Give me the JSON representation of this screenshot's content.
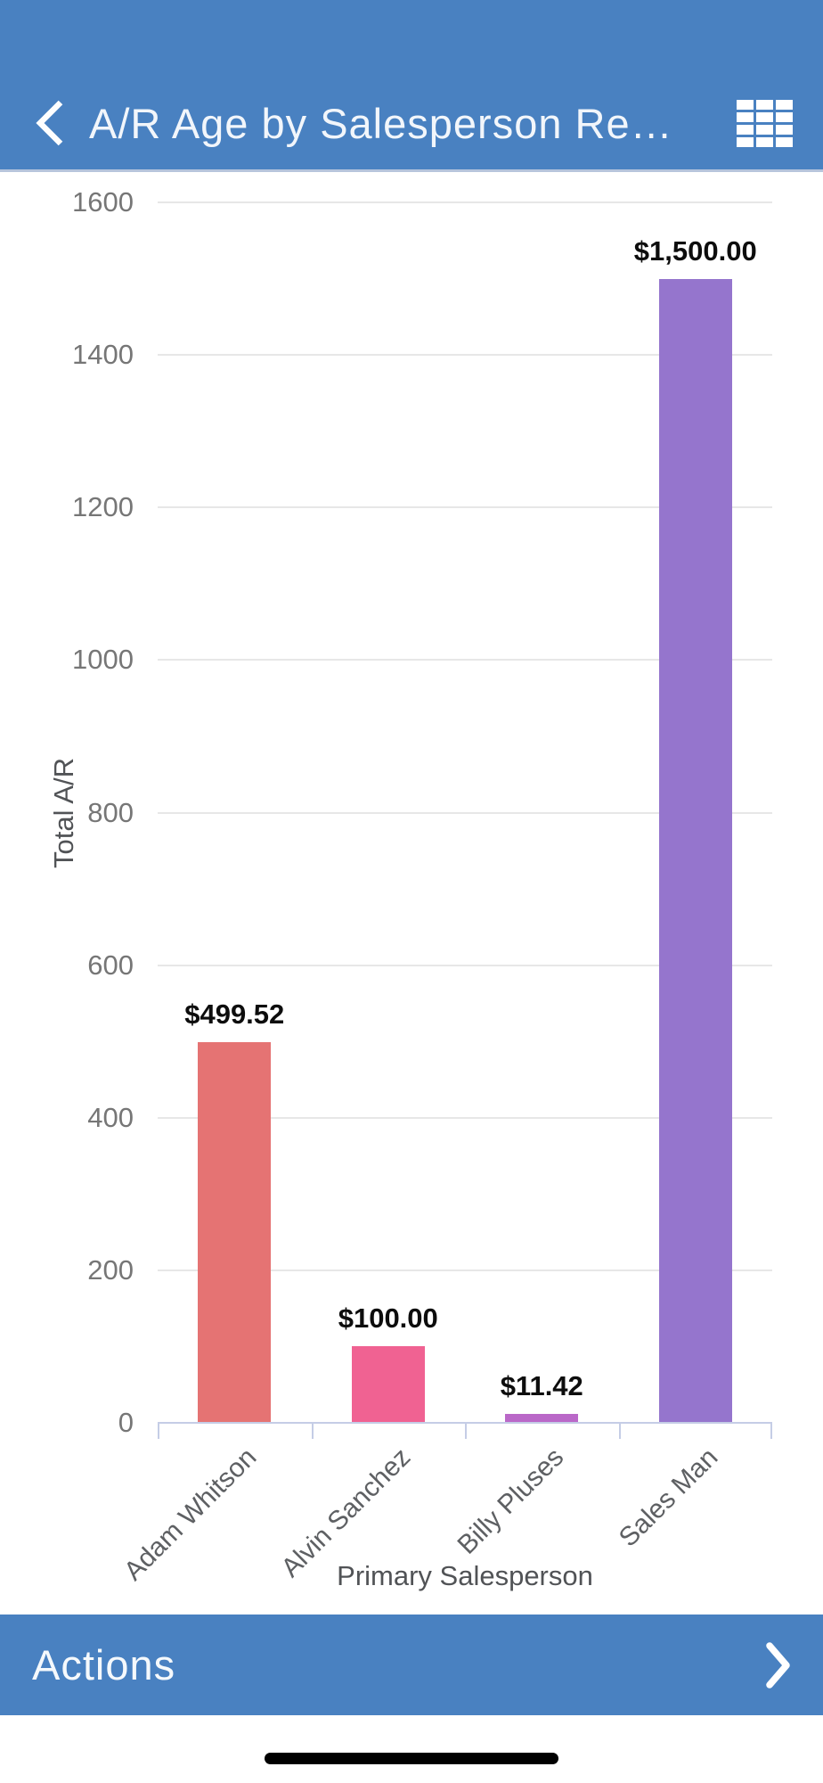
{
  "header": {
    "title": "A/R Age by Salesperson Re…",
    "back_icon": "chevron-left",
    "grid_icon": "table-grid"
  },
  "colors": {
    "nav_bg": "#4981c1",
    "footer_bg": "#4981c1",
    "axis_line": "#c5cde6",
    "gridline": "#e7e7e7",
    "home_indicator": "#000000"
  },
  "chart_data": {
    "type": "bar",
    "categories": [
      "Adam Whitson",
      "Alvin Sanchez",
      "Billy Pluses",
      "Sales Man"
    ],
    "values": [
      499.52,
      100.0,
      11.42,
      1500.0
    ],
    "value_labels": [
      "$499.52",
      "$100.00",
      "$11.42",
      "$1,500.00"
    ],
    "bar_colors": [
      "#e57373",
      "#f06292",
      "#ba68c8",
      "#9575cd"
    ],
    "title": "",
    "xlabel": "Primary Salesperson",
    "ylabel": "Total A/R",
    "ylim": [
      0,
      1600
    ],
    "yticks": [
      0,
      200,
      400,
      600,
      800,
      1000,
      1200,
      1400,
      1600
    ],
    "grid": "horizontal",
    "legend": "none"
  },
  "footer": {
    "actions_label": "Actions",
    "chevron_icon": "chevron-right"
  }
}
